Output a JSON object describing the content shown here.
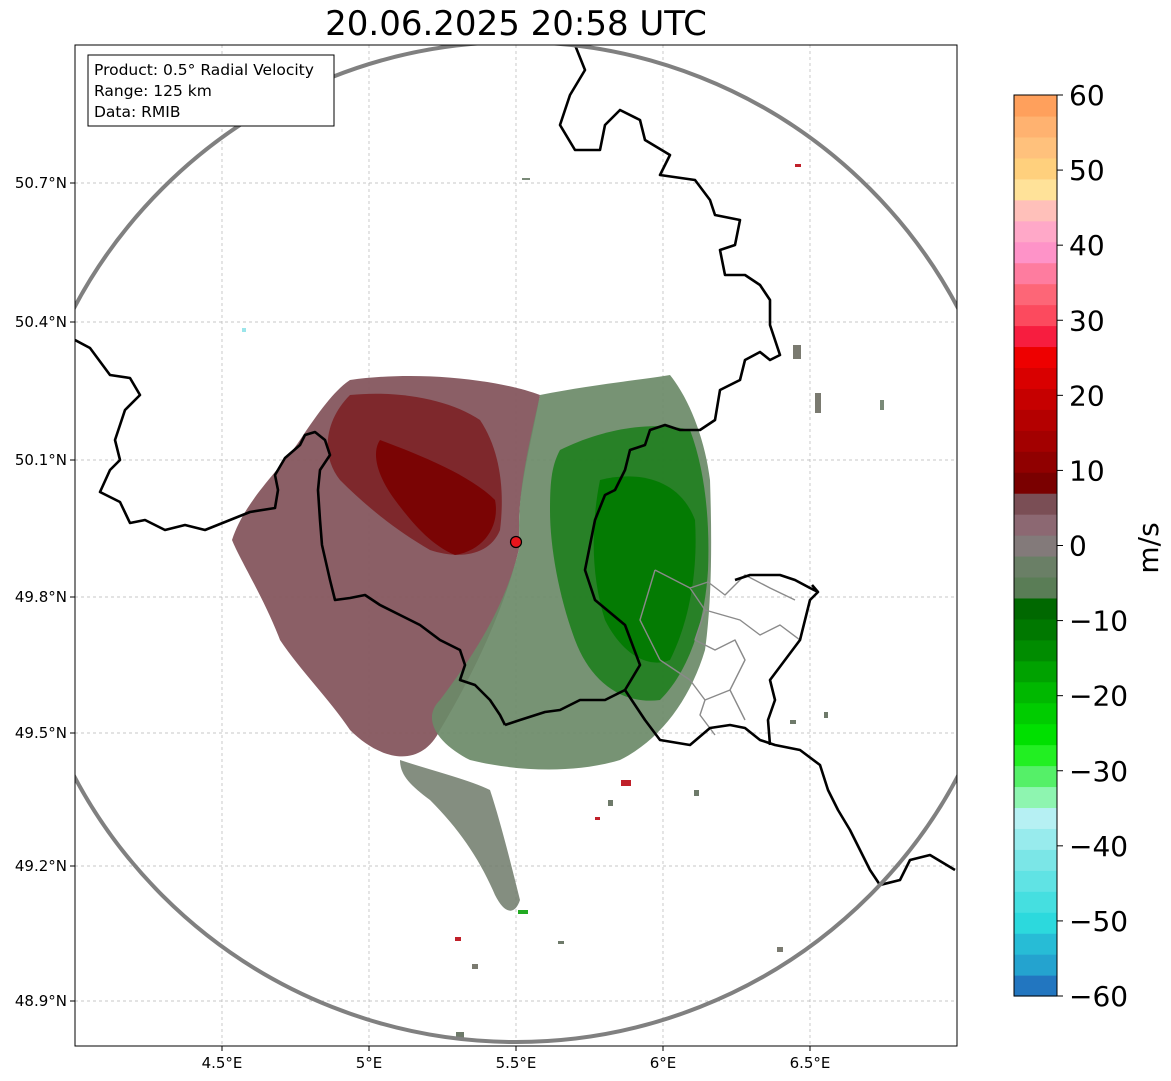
{
  "title": "20.06.2025 20:58 UTC",
  "info_box": {
    "product": "Product: 0.5° Radial Velocity",
    "range": "Range: 125 km",
    "data": "Data: RMIB"
  },
  "axes": {
    "lon_ticks": [
      "4.5°E",
      "5°E",
      "5.5°E",
      "6°E",
      "6.5°E"
    ],
    "lat_ticks": [
      "50.7°N",
      "50.4°N",
      "50.1°N",
      "49.8°N",
      "49.5°N",
      "49.2°N",
      "48.9°N"
    ]
  },
  "colorbar": {
    "label": "m/s",
    "ticks": [
      "60",
      "50",
      "40",
      "30",
      "20",
      "10",
      "0",
      "−10",
      "−20",
      "−30",
      "−40",
      "−50",
      "−60"
    ],
    "min": -60,
    "max": 60,
    "colors": [
      "#2276c0",
      "#24a3cf",
      "#27bcd6",
      "#2cd9dd",
      "#45dfe0",
      "#60e3e4",
      "#7be6e7",
      "#98ebed",
      "#b6f0f3",
      "#8ef5b0",
      "#55f068",
      "#22ef22",
      "#00e000",
      "#00cc00",
      "#00b800",
      "#00a200",
      "#008c00",
      "#007800",
      "#006800",
      "#5a7d56",
      "#6a7f66",
      "#837a7a",
      "#8c6872",
      "#7a4e55",
      "#7a0000",
      "#900000",
      "#a30000",
      "#b40000",
      "#c60000",
      "#d90000",
      "#ee0000",
      "#f71d3f",
      "#fc4a5e",
      "#fd6677",
      "#fe7c9f",
      "#fe93c8",
      "#ffa8c8",
      "#ffc0ba",
      "#ffe299",
      "#ffd07d",
      "#ffc17c",
      "#ffb270",
      "#ffa05c"
    ]
  },
  "radar": {
    "site_lon": 5.505,
    "site_lat": 49.914,
    "range_km": 125,
    "site_color": "#e8141c"
  }
}
